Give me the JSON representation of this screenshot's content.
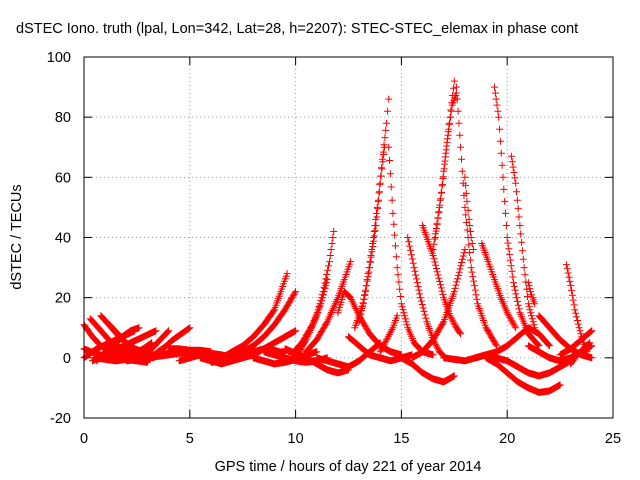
{
  "chart_data": {
    "type": "scatter",
    "title": "dSTEC Iono. truth (lpal, Lon=342, Lat=28, h=2207): STEC-STEC_elemax in phase cont",
    "xlabel": "GPS time / hours of day 221 of year 2014",
    "ylabel": "dSTEC  / TECUs",
    "xlim": [
      0,
      25
    ],
    "ylim": [
      -20,
      100
    ],
    "xticks": [
      0,
      5,
      10,
      15,
      20,
      25
    ],
    "yticks": [
      -20,
      0,
      20,
      40,
      60,
      80,
      100
    ],
    "grid": true,
    "marker": "plus",
    "color": "#ff0000",
    "series": [
      {
        "x": [
          0.0,
          0.4,
          0.8,
          1.2,
          1.6,
          2.0,
          2.4
        ],
        "y": [
          11,
          7,
          4,
          2.5,
          1.5,
          1,
          0.5
        ]
      },
      {
        "x": [
          0.3,
          0.8,
          1.3,
          1.8,
          2.3,
          2.8,
          3.3
        ],
        "y": [
          13,
          9,
          5,
          3,
          2,
          1.5,
          1
        ]
      },
      {
        "x": [
          0.8,
          1.3,
          1.8,
          2.3,
          2.8,
          3.3
        ],
        "y": [
          14,
          10,
          6,
          3,
          1,
          0
        ]
      },
      {
        "x": [
          1.2,
          1.6,
          2.0,
          2.4,
          2.8,
          3.2
        ],
        "y": [
          11,
          8,
          5,
          3,
          2,
          1
        ]
      },
      {
        "x": [
          0.0,
          0.6,
          1.2,
          1.8,
          2.4
        ],
        "y": [
          0,
          3,
          5,
          7,
          9
        ]
      },
      {
        "x": [
          0.4,
          1.0,
          1.6,
          2.2,
          2.8,
          3.4
        ],
        "y": [
          -1,
          1,
          3,
          5,
          7,
          9
        ]
      },
      {
        "x": [
          0.6,
          1.0,
          1.4,
          1.8,
          2.2,
          2.6
        ],
        "y": [
          -1,
          2,
          4,
          7,
          9,
          10
        ]
      },
      {
        "x": [
          0.0,
          0.5,
          1.0,
          1.5,
          2.0,
          2.5,
          3.0
        ],
        "y": [
          3,
          1.5,
          0.5,
          0,
          -0.5,
          -1,
          -1.5
        ]
      },
      {
        "x": [
          0.5,
          1.0,
          1.5,
          2.0,
          2.5,
          3.0,
          3.5
        ],
        "y": [
          0,
          -0.5,
          -1,
          -0.5,
          0,
          0.5,
          1
        ]
      },
      {
        "x": [
          2.4,
          2.8,
          3.2,
          3.6,
          4.0
        ],
        "y": [
          -0.5,
          1,
          3,
          6,
          9
        ]
      },
      {
        "x": [
          3.0,
          3.4,
          3.8,
          4.2,
          4.6,
          5.0
        ],
        "y": [
          -1,
          1.5,
          3.5,
          6,
          8,
          10
        ]
      },
      {
        "x": [
          2.0,
          2.4,
          2.8,
          3.2
        ],
        "y": [
          0.5,
          1.5,
          3,
          5
        ]
      },
      {
        "x": [
          2.0,
          2.5,
          3.0,
          3.5,
          4.0,
          4.5,
          5.0
        ],
        "y": [
          -1,
          -0.5,
          0,
          0.5,
          1,
          1.5,
          2
        ]
      },
      {
        "x": [
          3.5,
          4.0,
          4.5,
          5.0,
          5.5,
          6.0
        ],
        "y": [
          1,
          1.5,
          2,
          2.5,
          2.5,
          2
        ]
      },
      {
        "x": [
          4.5,
          5.0,
          5.5,
          6.0,
          6.5,
          7.0
        ],
        "y": [
          -1,
          0,
          1,
          1.5,
          1,
          0
        ]
      },
      {
        "x": [
          4.0,
          4.5,
          5.0,
          5.5,
          6.0,
          6.5
        ],
        "y": [
          3,
          3,
          2.5,
          2,
          1,
          0
        ]
      },
      {
        "x": [
          5.5,
          6.0,
          6.5,
          7.0,
          7.5,
          8.0,
          8.5,
          9.0,
          9.5
        ],
        "y": [
          0,
          -1,
          -2,
          -1,
          0.5,
          2,
          3,
          2.5,
          1.5
        ]
      },
      {
        "x": [
          6.0,
          6.5,
          7.0,
          7.5,
          8.0,
          8.5,
          9.0,
          9.5,
          10.0
        ],
        "y": [
          -1.5,
          -1,
          0,
          2,
          4,
          7,
          11,
          16,
          22
        ]
      },
      {
        "x": [
          6.5,
          7.0,
          7.5,
          8.0,
          8.5,
          9.0,
          9.3,
          9.6
        ],
        "y": [
          0,
          2,
          4,
          7,
          11,
          16,
          22,
          28
        ]
      },
      {
        "x": [
          7.0,
          7.5,
          8.0,
          8.5,
          9.0,
          9.5,
          10.0
        ],
        "y": [
          -1,
          0,
          1,
          3,
          5,
          7,
          9
        ]
      },
      {
        "x": [
          8.0,
          8.5,
          9.0,
          9.5,
          10.0,
          10.5,
          11.0
        ],
        "y": [
          0,
          -1,
          -2,
          -1.5,
          -0.5,
          1,
          2
        ]
      },
      {
        "x": [
          8.5,
          9.0,
          9.5,
          10.0,
          10.5,
          11.0,
          11.5
        ],
        "y": [
          2,
          1,
          0,
          -1,
          -1.5,
          -1,
          0
        ]
      },
      {
        "x": [
          9.5,
          10.0,
          10.5,
          11.0,
          11.5,
          12.0,
          12.5
        ],
        "y": [
          3,
          1.5,
          0,
          -2,
          -4,
          -5,
          -4
        ]
      },
      {
        "x": [
          10.0,
          10.5,
          11.0,
          11.3,
          11.6,
          11.8
        ],
        "y": [
          0,
          6,
          14,
          22,
          32,
          42
        ]
      },
      {
        "x": [
          9.8,
          10.3,
          10.8,
          11.2,
          11.5
        ],
        "y": [
          1,
          5,
          11,
          18,
          26
        ]
      },
      {
        "x": [
          10.5,
          11.0,
          11.5,
          12.0,
          12.3,
          12.6
        ],
        "y": [
          2,
          6,
          12,
          20,
          26,
          32
        ]
      },
      {
        "x": [
          12.0,
          12.3,
          12.6,
          13.0,
          13.5,
          14.0,
          14.5,
          15.0
        ],
        "y": [
          15,
          22,
          20,
          14,
          8,
          4,
          2,
          1
        ]
      },
      {
        "x": [
          11.0,
          11.5,
          12.0,
          12.5,
          13.0,
          13.5,
          14.0
        ],
        "y": [
          0,
          -1,
          -2,
          -3,
          -1,
          2,
          5
        ]
      },
      {
        "x": [
          12.5,
          13.0,
          13.5,
          14.0,
          14.5,
          15.0,
          15.5
        ],
        "y": [
          7,
          4,
          1,
          0,
          -1,
          0,
          1
        ]
      },
      {
        "x": [
          13.0,
          13.3,
          13.6,
          13.9,
          14.1,
          14.3,
          14.4
        ],
        "y": [
          12,
          22,
          36,
          52,
          66,
          78,
          86
        ]
      },
      {
        "x": [
          12.8,
          13.2,
          13.5,
          13.8,
          14.0,
          14.2
        ],
        "y": [
          10,
          18,
          30,
          44,
          58,
          70
        ]
      },
      {
        "x": [
          14.4,
          14.6,
          14.8,
          15.0,
          15.3,
          15.6,
          16.0,
          16.5
        ],
        "y": [
          70,
          48,
          30,
          18,
          10,
          5,
          2,
          1
        ]
      },
      {
        "x": [
          14.0,
          14.3,
          14.6,
          14.8
        ],
        "y": [
          2,
          6,
          10,
          14
        ]
      },
      {
        "x": [
          15.3,
          15.6,
          15.9,
          16.2,
          16.5,
          16.8,
          17.1
        ],
        "y": [
          40,
          30,
          20,
          12,
          6,
          2,
          0
        ]
      },
      {
        "x": [
          15.0,
          15.5,
          16.0,
          16.5,
          17.0,
          17.5
        ],
        "y": [
          0,
          -2,
          -5,
          -7,
          -8,
          -6
        ]
      },
      {
        "x": [
          15.5,
          16.0,
          16.5,
          17.0,
          17.5,
          18.0
        ],
        "y": [
          0,
          2,
          6,
          12,
          22,
          36
        ]
      },
      {
        "x": [
          16.0,
          16.5,
          17.0,
          17.3,
          17.6,
          17.8
        ],
        "y": [
          44,
          34,
          20,
          14,
          10,
          8
        ]
      },
      {
        "x": [
          16.6,
          16.9,
          17.1,
          17.3,
          17.5
        ],
        "y": [
          40,
          55,
          68,
          80,
          92
        ]
      },
      {
        "x": [
          16.5,
          16.8,
          17.0,
          17.2,
          17.4,
          17.6
        ],
        "y": [
          36,
          50,
          62,
          74,
          84,
          88
        ]
      },
      {
        "x": [
          17.6,
          17.8,
          18.0,
          18.3,
          18.6,
          19.0,
          19.5
        ],
        "y": [
          90,
          70,
          50,
          30,
          18,
          10,
          4
        ]
      },
      {
        "x": [
          18.0,
          18.1,
          18.2,
          18.3,
          18.4
        ],
        "y": [
          60,
          52,
          46,
          40,
          36
        ]
      },
      {
        "x": [
          17.0,
          17.5,
          18.0,
          18.5,
          19.0,
          19.5,
          20.0
        ],
        "y": [
          0,
          -0.5,
          -1,
          0,
          1,
          0,
          -1
        ]
      },
      {
        "x": [
          18.5,
          19.0,
          19.5,
          20.0,
          20.5,
          21.0,
          21.5,
          22.0
        ],
        "y": [
          0,
          1,
          2,
          4,
          7,
          10,
          8,
          4
        ]
      },
      {
        "x": [
          18.8,
          19.1,
          19.4,
          19.7,
          20.0,
          20.4
        ],
        "y": [
          38,
          32,
          26,
          20,
          15,
          10
        ]
      },
      {
        "x": [
          19.4,
          19.6,
          19.8,
          20.0,
          20.3,
          20.6,
          21.0,
          21.5
        ],
        "y": [
          90,
          80,
          60,
          40,
          25,
          15,
          8,
          4
        ]
      },
      {
        "x": [
          20.2,
          20.4,
          20.6,
          20.8,
          21.0,
          21.3
        ],
        "y": [
          67,
          58,
          44,
          30,
          18,
          10
        ]
      },
      {
        "x": [
          21.0,
          21.1,
          21.2,
          21.3
        ],
        "y": [
          25,
          22,
          20,
          18
        ]
      },
      {
        "x": [
          19.0,
          19.5,
          20.0,
          20.5,
          21.0,
          21.5,
          22.0,
          22.5
        ],
        "y": [
          0,
          -2,
          -5,
          -8,
          -10,
          -11.5,
          -11,
          -9
        ]
      },
      {
        "x": [
          20.0,
          20.5,
          21.0,
          21.5,
          22.0,
          22.5,
          23.0
        ],
        "y": [
          -1,
          -3,
          -5,
          -6,
          -5,
          -3,
          -1
        ]
      },
      {
        "x": [
          21.5,
          22.0,
          22.5,
          23.0,
          23.5,
          24.0
        ],
        "y": [
          14,
          10,
          6,
          3,
          1,
          0
        ]
      },
      {
        "x": [
          21.0,
          21.5,
          22.0,
          22.5,
          23.0,
          23.5,
          24.0
        ],
        "y": [
          4,
          2,
          0,
          -1,
          0,
          2,
          4
        ]
      },
      {
        "x": [
          22.8,
          23.0,
          23.2,
          23.4,
          23.6,
          23.8
        ],
        "y": [
          31,
          24,
          16,
          10,
          5,
          2
        ]
      },
      {
        "x": [
          22.5,
          23.0,
          23.5,
          24.0
        ],
        "y": [
          1,
          3,
          6,
          9
        ]
      },
      {
        "x": [
          23.0,
          23.3,
          23.6,
          23.9
        ],
        "y": [
          -2,
          1,
          3,
          5
        ]
      }
    ]
  }
}
